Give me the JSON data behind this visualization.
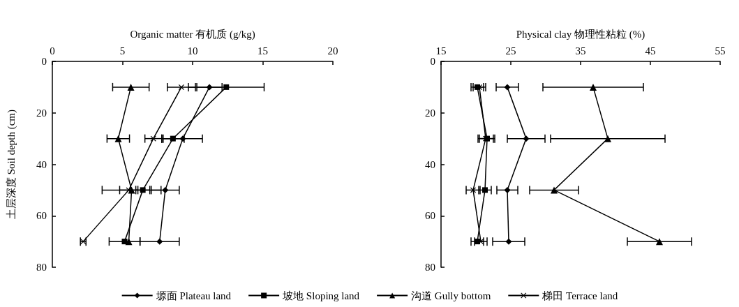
{
  "chart_data": [
    {
      "type": "line",
      "orientation": "horizontal",
      "xlabel": "Organic matter 有机质 (g/kg)",
      "ylabel": "土层深度 Soil depth (cm)",
      "x": [
        10,
        30,
        50,
        70
      ],
      "xlim": [
        0,
        20
      ],
      "xticks": [
        0,
        5,
        10,
        15,
        20
      ],
      "ylim": [
        80,
        0
      ],
      "yticks": [
        0,
        20,
        40,
        60,
        80
      ],
      "grid": false,
      "legend": "bottom",
      "series": [
        {
          "name": "塬面 Plateau land",
          "color": "#000000",
          "marker": "diamond",
          "values": [
            11.2,
            9.3,
            8.05,
            7.65
          ],
          "errors": [
            0.9,
            1.4,
            1.0,
            1.4
          ]
        },
        {
          "name": "坡地 Sloping land",
          "color": "#000000",
          "marker": "square",
          "values": [
            12.4,
            8.6,
            6.45,
            5.15
          ],
          "errors": [
            2.7,
            0.8,
            0.5,
            1.1
          ]
        },
        {
          "name": "沟道 Gully bottom",
          "color": "#000000",
          "marker": "triangle",
          "values": [
            5.6,
            4.7,
            5.65,
            5.45
          ],
          "errors": [
            1.3,
            0.8,
            2.1,
            null
          ]
        },
        {
          "name": "梯田 Terrace land",
          "color": "#000000",
          "marker": "cross",
          "values": [
            9.2,
            7.2,
            5.45,
            2.2
          ],
          "errors": [
            1.0,
            0.6,
            0.65,
            0.2
          ]
        }
      ]
    },
    {
      "type": "line",
      "orientation": "horizontal",
      "xlabel": "Physical clay 物理性粘粒 (%)",
      "x": [
        10,
        30,
        50,
        70
      ],
      "xlim": [
        15,
        55
      ],
      "xticks": [
        15,
        25,
        35,
        45,
        55
      ],
      "ylim": [
        80,
        0
      ],
      "yticks": [
        0,
        20,
        40,
        60,
        80
      ],
      "grid": false,
      "series": [
        {
          "color": "#000000",
          "marker": "diamond",
          "values": [
            24.5,
            27.2,
            24.5,
            24.7
          ],
          "errors": [
            1.6,
            2.7,
            1.5,
            2.3
          ]
        },
        {
          "color": "#000000",
          "marker": "square",
          "values": [
            20.2,
            21.6,
            21.3,
            20.2
          ],
          "errors": [
            0.9,
            1.1,
            0.9,
            0.9
          ]
        },
        {
          "color": "#000000",
          "marker": "triangle",
          "values": [
            36.8,
            38.9,
            31.2,
            46.3
          ],
          "errors": [
            7.2,
            8.2,
            3.5,
            4.6
          ]
        },
        {
          "color": "#000000",
          "marker": "cross",
          "values": [
            20.5,
            21.4,
            19.6,
            20.7
          ],
          "errors": [
            0.9,
            1.1,
            1.0,
            0.9
          ]
        }
      ]
    }
  ]
}
